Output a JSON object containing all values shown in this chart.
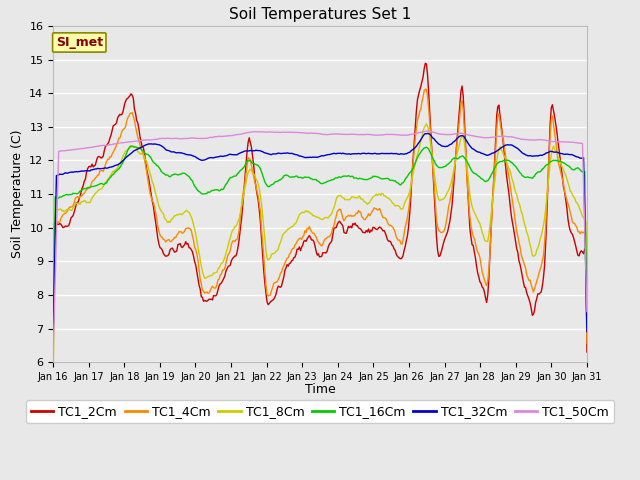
{
  "title": "Soil Temperatures Set 1",
  "xlabel": "Time",
  "ylabel": "Soil Temperature (C)",
  "ylim": [
    6.0,
    16.0
  ],
  "yticks": [
    6.0,
    7.0,
    8.0,
    9.0,
    10.0,
    11.0,
    12.0,
    13.0,
    14.0,
    15.0,
    16.0
  ],
  "x_labels": [
    "Jan 16",
    "Jan 17",
    "Jan 18",
    "Jan 19",
    "Jan 20",
    "Jan 21",
    "Jan 22",
    "Jan 23",
    "Jan 24",
    "Jan 25",
    "Jan 26",
    "Jan 27",
    "Jan 28",
    "Jan 29",
    "Jan 30",
    "Jan 31"
  ],
  "series_names": [
    "TC1_2Cm",
    "TC1_4Cm",
    "TC1_8Cm",
    "TC1_16Cm",
    "TC1_32Cm",
    "TC1_50Cm"
  ],
  "series_colors": [
    "#cc0000",
    "#ff8800",
    "#cccc00",
    "#00cc00",
    "#0000cc",
    "#dd88dd"
  ],
  "series_linewidths": [
    1.0,
    1.0,
    1.0,
    1.0,
    1.0,
    1.0
  ],
  "annotation_text": "SI_met",
  "annotation_color": "#880000",
  "annotation_bg": "#ffffaa",
  "annotation_border": "#888800",
  "fig_bg_color": "#e8e8e8",
  "plot_bg_color": "#e8e8e8",
  "grid_color": "#ffffff",
  "title_fontsize": 11,
  "axis_label_fontsize": 9,
  "tick_fontsize": 8,
  "legend_fontsize": 9,
  "n_points": 480
}
